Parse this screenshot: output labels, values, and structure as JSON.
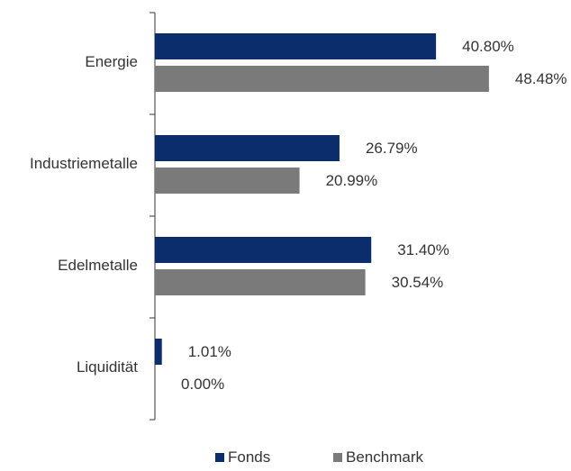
{
  "chart_data": {
    "type": "bar",
    "orientation": "horizontal",
    "categories": [
      "Energie",
      "Industriemetalle",
      "Edelmetalle",
      "Liquidität"
    ],
    "series": [
      {
        "name": "Fonds",
        "values": [
          40.8,
          26.79,
          31.4,
          1.01
        ],
        "labels": [
          "40.80%",
          "26.79%",
          "31.40%",
          "1.01%"
        ],
        "color": "#0b2d6b"
      },
      {
        "name": "Benchmark",
        "values": [
          48.48,
          20.99,
          30.54,
          0.0
        ],
        "labels": [
          "48.48%",
          "20.99%",
          "30.54%",
          "0.00%"
        ],
        "color": "#7a7a7a"
      }
    ],
    "xlim": [
      0,
      50
    ],
    "grid": false,
    "legend_position": "bottom"
  }
}
